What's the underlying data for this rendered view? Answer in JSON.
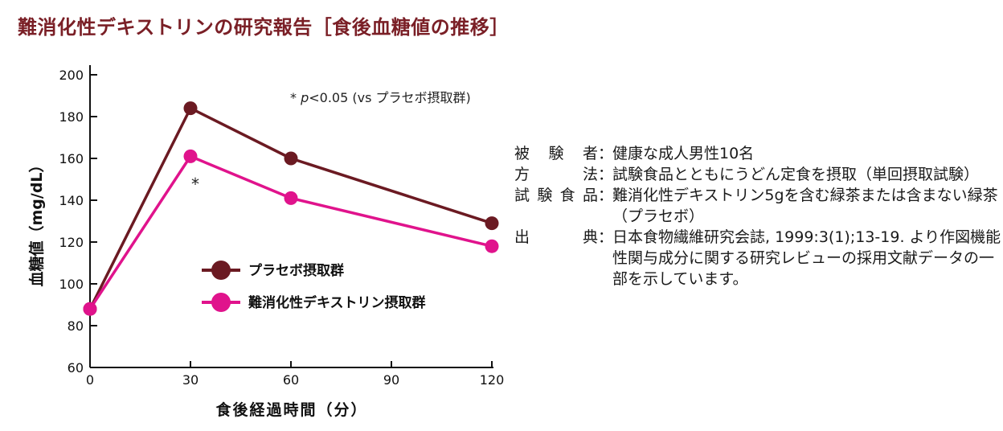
{
  "page": {
    "title": "難消化性デキストリンの研究報告［食後血糖値の推移］",
    "title_color": "#7a1f26"
  },
  "chart_data": {
    "type": "line",
    "x": [
      0,
      30,
      60,
      120
    ],
    "xticks": [
      "0",
      "30",
      "60",
      "90",
      "120"
    ],
    "xtick_values": [
      0,
      30,
      60,
      90,
      120
    ],
    "xlim": [
      0,
      120
    ],
    "yticks": [
      "60",
      "80",
      "100",
      "120",
      "140",
      "160",
      "180",
      "200"
    ],
    "ytick_values": [
      60,
      80,
      100,
      120,
      140,
      160,
      180,
      200
    ],
    "ylim": [
      60,
      200
    ],
    "xlabel": "食後経過時間（分）",
    "ylabel": "血糖値（mg/dL）",
    "series": [
      {
        "name": "プラセボ摂取群",
        "values": [
          88,
          184,
          160,
          129
        ],
        "color": "#6b1a22"
      },
      {
        "name": "難消化性デキストリン摂取群",
        "values": [
          88,
          161,
          141,
          118
        ],
        "color": "#e0138c"
      }
    ],
    "annotations": {
      "significance_note": "* p<0.05 (vs プラセボ摂取群)",
      "marker": "*",
      "marker_x": 30
    },
    "legend_position": "center"
  },
  "notes": [
    {
      "label": "被験者",
      "value": "健康な成人男性10名"
    },
    {
      "label": "方法",
      "value": "試験食品とともにうどん定食を摂取（単回摂取試験）"
    },
    {
      "label": "試験食品",
      "value": "難消化性デキストリン5gを含む緑茶または含まない緑茶（プラセボ）"
    },
    {
      "label": "出典",
      "value": "日本食物繊維研究会誌, 1999:3(1);13-19. より作図機能性関与成分に関する研究レビューの採用文献データの一部を示しています。"
    }
  ],
  "note_separator": "："
}
